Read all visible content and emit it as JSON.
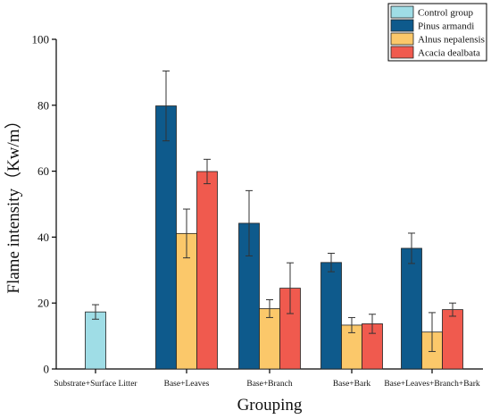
{
  "chart_data": {
    "type": "bar",
    "title": "",
    "xlabel": "Grouping",
    "ylabel": "Flame intensity（Kw/m）",
    "ylim": [
      0,
      100
    ],
    "yticks": [
      0,
      20,
      40,
      60,
      80,
      100
    ],
    "grid": false,
    "legend_position": "top-right",
    "categories": [
      "Substrate+Surface Litter",
      "Base+Leaves",
      "Base+Branch",
      "Base+Bark",
      "Base+Leaves+Branch+Bark"
    ],
    "series": [
      {
        "name": "Control group",
        "color": "#9fdde6",
        "values": [
          17.3,
          null,
          null,
          null,
          null
        ],
        "errors": [
          2.2,
          null,
          null,
          null,
          null
        ]
      },
      {
        "name": "Pinus armandi",
        "color": "#0e5a8c",
        "values": [
          null,
          79.8,
          44.2,
          32.3,
          36.6
        ],
        "errors": [
          null,
          10.6,
          9.9,
          2.8,
          4.6
        ]
      },
      {
        "name": "Alnus nepalensis",
        "color": "#fbc86a",
        "values": [
          null,
          41.1,
          18.3,
          13.3,
          11.2
        ],
        "errors": [
          null,
          7.4,
          2.7,
          2.3,
          5.9
        ]
      },
      {
        "name": "Acacia dealbata",
        "color": "#f05a4e",
        "values": [
          null,
          59.9,
          24.5,
          13.7,
          18.0
        ],
        "errors": [
          null,
          3.7,
          7.7,
          2.9,
          2.0
        ]
      }
    ]
  }
}
